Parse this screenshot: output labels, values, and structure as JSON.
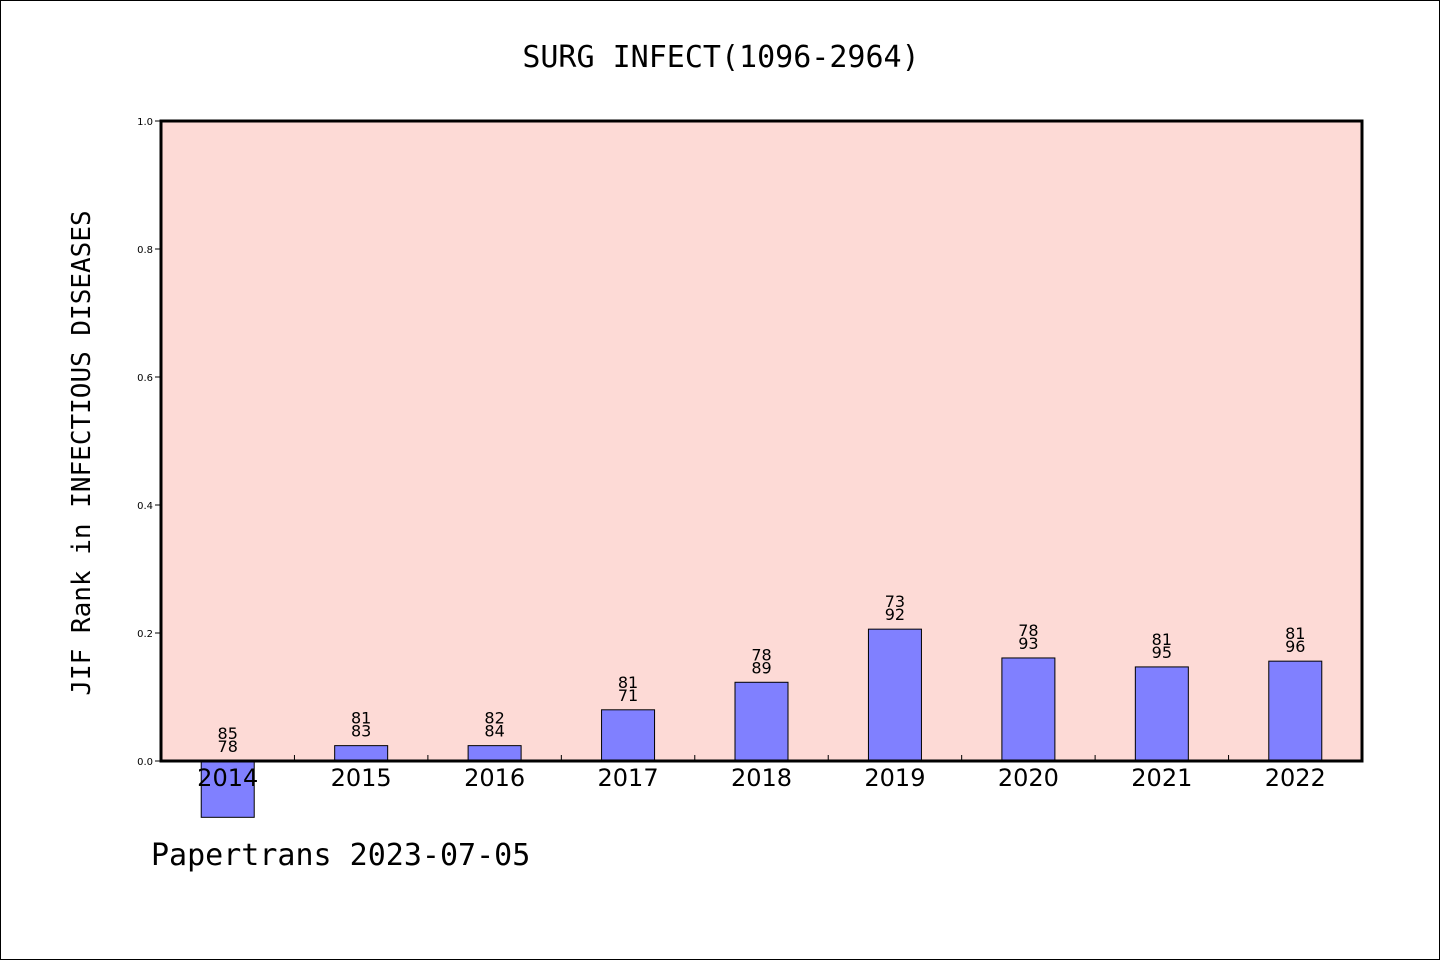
{
  "chart_data": {
    "type": "bar",
    "title": "SURG INFECT(1096-2964)",
    "ylabel": "JIF Rank in INFECTIOUS DISEASES",
    "xlabel": "",
    "ylim": [
      0.0,
      1.0
    ],
    "yticks": [
      "0.0",
      "0.2",
      "0.4",
      "0.6",
      "0.8",
      "1.0"
    ],
    "grid": false,
    "categories": [
      "2014",
      "2015",
      "2016",
      "2017",
      "2018",
      "2019",
      "2020",
      "2021",
      "2022"
    ],
    "values": [
      -0.088,
      0.024,
      0.024,
      0.08,
      0.123,
      0.206,
      0.161,
      0.147,
      0.156
    ],
    "label_top": [
      "85",
      "81",
      "82",
      "81",
      "78",
      "73",
      "78",
      "81",
      "81"
    ],
    "label_bottom": [
      "78",
      "83",
      "84",
      "71",
      "89",
      "92",
      "93",
      "95",
      "96"
    ],
    "colors": {
      "plot_background": "#fddad6",
      "bar": "#8080ff",
      "bar_edge": "#000000"
    }
  },
  "footer": "Papertrans 2023-07-05"
}
